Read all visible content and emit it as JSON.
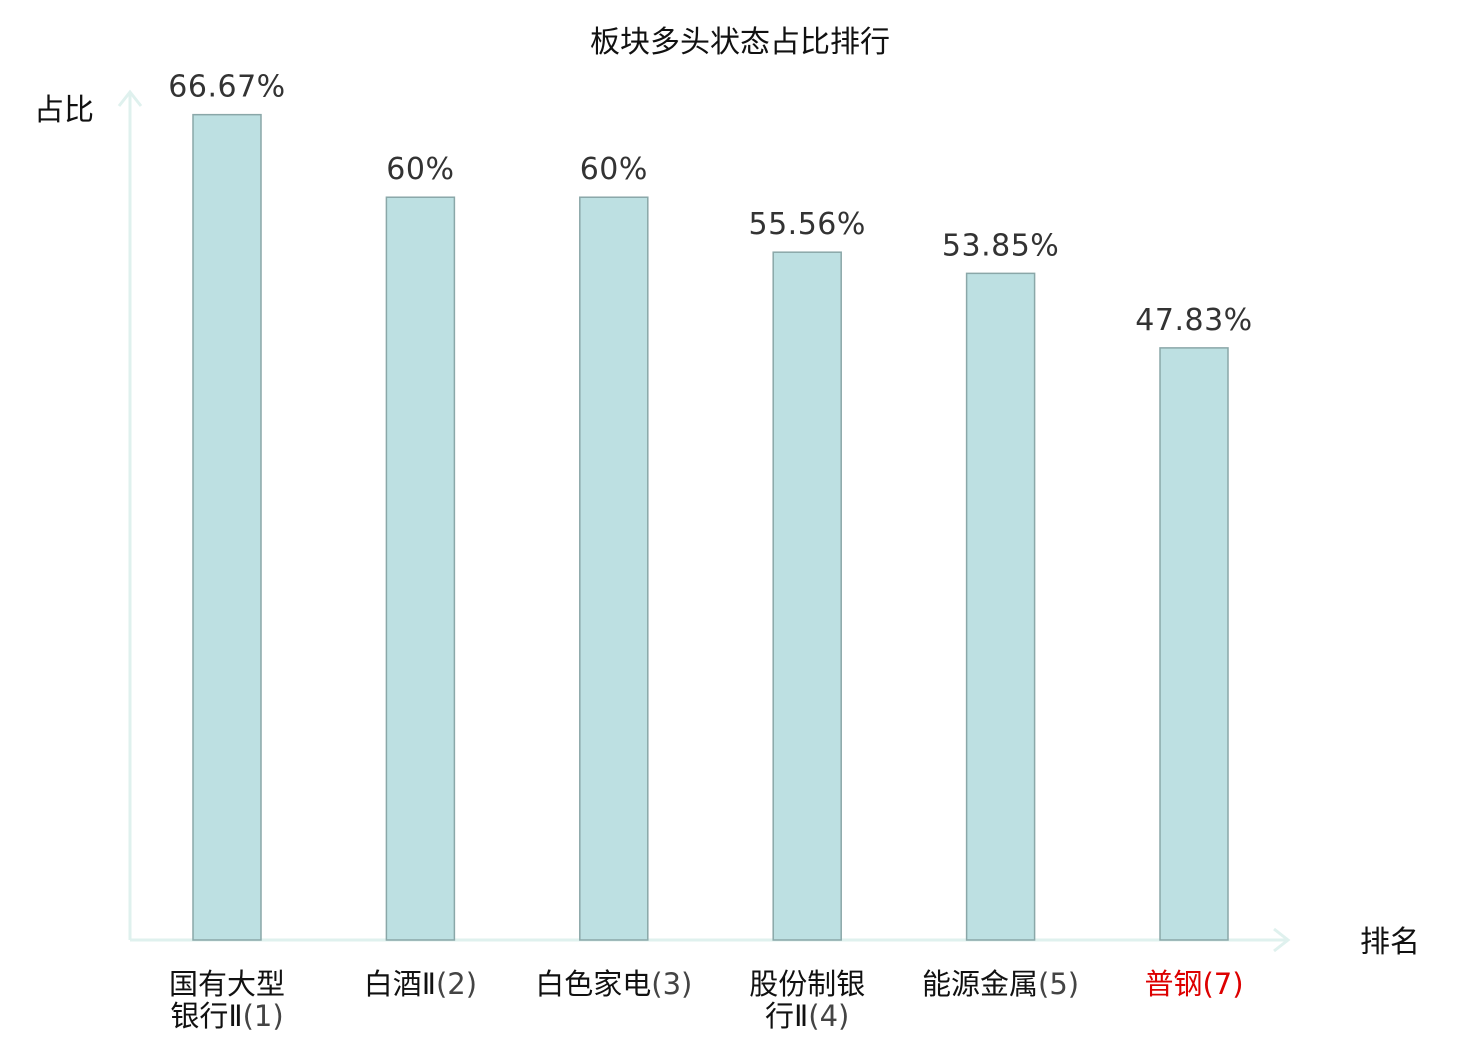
{
  "chart_data": {
    "type": "bar",
    "title": "板块多头状态占比排行",
    "ylabel": "占比",
    "xlabel": "排名",
    "ylim": [
      0,
      68.5
    ],
    "grid": false,
    "categories": [
      {
        "name_lines": [
          "国有大型",
          "银行Ⅱ"
        ],
        "rank": "(1)",
        "highlight": false
      },
      {
        "name_lines": [
          "白酒Ⅱ"
        ],
        "rank": "(2)",
        "highlight": false
      },
      {
        "name_lines": [
          "白色家电"
        ],
        "rank": "(3)",
        "highlight": false
      },
      {
        "name_lines": [
          "股份制银",
          "行Ⅱ"
        ],
        "rank": "(4)",
        "highlight": false
      },
      {
        "name_lines": [
          "能源金属"
        ],
        "rank": "(5)",
        "highlight": false
      },
      {
        "name_lines": [
          "普钢"
        ],
        "rank": "(7)",
        "highlight": true
      }
    ],
    "values": [
      66.67,
      60,
      60,
      55.56,
      53.85,
      47.83
    ],
    "value_labels": [
      "66.67%",
      "60%",
      "60%",
      "55.56%",
      "53.85%",
      "47.83%"
    ],
    "colors": {
      "bar_fill": "#bde0e2",
      "bar_stroke": "#8aa7a8",
      "axis": "#dff1ee",
      "highlight_text": "#dd0000"
    }
  }
}
